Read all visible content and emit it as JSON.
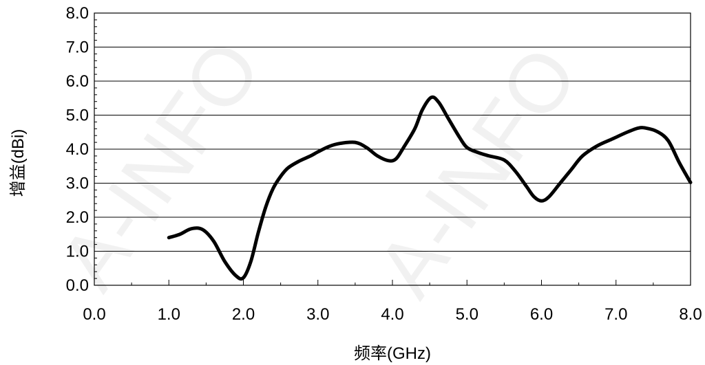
{
  "chart_data": {
    "type": "line",
    "title": "",
    "xlabel": "频率(GHz)",
    "ylabel": "增益(dBi)",
    "xlim": [
      0.0,
      8.0
    ],
    "ylim": [
      0.0,
      8.0
    ],
    "x_ticks": [
      "0.0",
      "1.0",
      "2.0",
      "3.0",
      "4.0",
      "5.0",
      "6.0",
      "7.0",
      "8.0"
    ],
    "y_ticks": [
      "0.0",
      "1.0",
      "2.0",
      "3.0",
      "4.0",
      "5.0",
      "6.0",
      "7.0",
      "8.0"
    ],
    "grid": "horizontal",
    "legend": "none",
    "line_color": "#000000",
    "watermark": [
      "A-INFO",
      "A-INFO"
    ],
    "series": [
      {
        "x": [
          1.0,
          1.15,
          1.3,
          1.45,
          1.6,
          1.75,
          1.9,
          2.0,
          2.1,
          2.2,
          2.3,
          2.4,
          2.5,
          2.6,
          2.75,
          2.9,
          3.0,
          3.15,
          3.3,
          3.5,
          3.65,
          3.8,
          3.95,
          4.05,
          4.15,
          4.3,
          4.4,
          4.52,
          4.62,
          4.75,
          4.9,
          5.0,
          5.15,
          5.3,
          5.5,
          5.65,
          5.8,
          5.9,
          6.0,
          6.1,
          6.25,
          6.4,
          6.55,
          6.75,
          6.95,
          7.15,
          7.3,
          7.4,
          7.55,
          7.7,
          7.85,
          8.0
        ],
        "y": [
          1.4,
          1.5,
          1.66,
          1.64,
          1.3,
          0.7,
          0.28,
          0.22,
          0.7,
          1.55,
          2.3,
          2.85,
          3.2,
          3.45,
          3.65,
          3.8,
          3.92,
          4.08,
          4.17,
          4.2,
          4.05,
          3.8,
          3.66,
          3.72,
          4.05,
          4.6,
          5.15,
          5.52,
          5.38,
          4.9,
          4.35,
          4.05,
          3.9,
          3.8,
          3.68,
          3.35,
          2.9,
          2.6,
          2.48,
          2.6,
          3.0,
          3.4,
          3.8,
          4.1,
          4.3,
          4.5,
          4.62,
          4.62,
          4.52,
          4.25,
          3.6,
          3.02
        ]
      }
    ]
  }
}
